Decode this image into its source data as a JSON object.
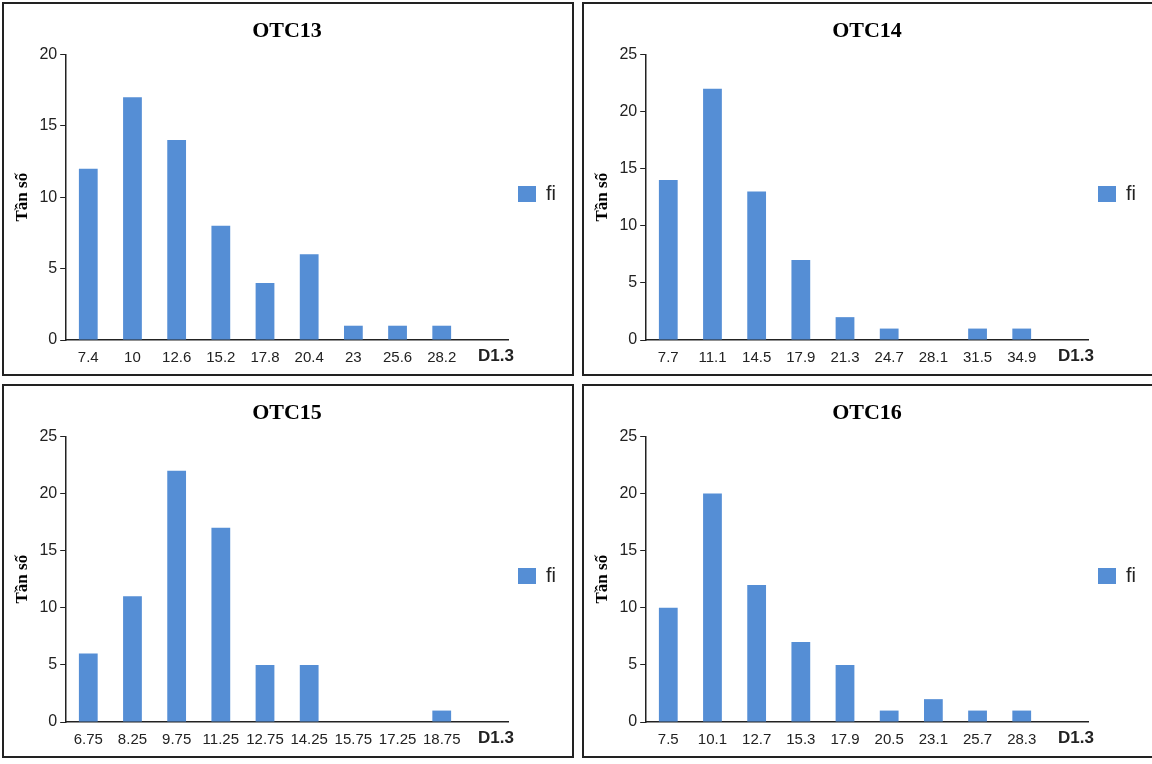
{
  "chart_data": [
    {
      "type": "bar",
      "title": "OTC13",
      "xlabel": "D1.3",
      "ylabel": "Tần số",
      "categories": [
        "7.4",
        "10",
        "12.6",
        "15.2",
        "17.8",
        "20.4",
        "23",
        "25.6",
        "28.2",
        null
      ],
      "series": [
        {
          "name": "fi",
          "color": "#558ed5",
          "values": [
            12,
            17,
            14,
            8,
            4,
            6,
            1,
            1,
            1,
            null
          ]
        }
      ],
      "ylim": [
        0,
        20
      ],
      "yticks": [
        0,
        5,
        10,
        15,
        20
      ],
      "grid": false,
      "legend": "right"
    },
    {
      "type": "bar",
      "title": "OTC14",
      "xlabel": "D1.3",
      "ylabel": "Tần số",
      "categories": [
        "7.7",
        "11.1",
        "14.5",
        "17.9",
        "21.3",
        "24.7",
        "28.1",
        "31.5",
        "34.9",
        null
      ],
      "series": [
        {
          "name": "fi",
          "color": "#558ed5",
          "values": [
            14,
            22,
            13,
            7,
            2,
            1,
            0,
            1,
            1,
            null
          ]
        }
      ],
      "ylim": [
        0,
        25
      ],
      "yticks": [
        0,
        5,
        10,
        15,
        20,
        25
      ],
      "grid": false,
      "legend": "right"
    },
    {
      "type": "bar",
      "title": "OTC15",
      "xlabel": "D1.3",
      "ylabel": "Tần số",
      "categories": [
        "6.75",
        "8.25",
        "9.75",
        "11.25",
        "12.75",
        "14.25",
        "15.75",
        "17.25",
        "18.75",
        null
      ],
      "series": [
        {
          "name": "fi",
          "color": "#558ed5",
          "values": [
            6,
            11,
            22,
            17,
            5,
            5,
            0,
            0,
            1,
            null
          ]
        }
      ],
      "ylim": [
        0,
        25
      ],
      "yticks": [
        0,
        5,
        10,
        15,
        20,
        25
      ],
      "grid": false,
      "legend": "right"
    },
    {
      "type": "bar",
      "title": "OTC16",
      "xlabel": "D1.3",
      "ylabel": "Tần số",
      "categories": [
        "7.5",
        "10.1",
        "12.7",
        "15.3",
        "17.9",
        "20.5",
        "23.1",
        "25.7",
        "28.3",
        null
      ],
      "series": [
        {
          "name": "fi",
          "color": "#558ed5",
          "values": [
            10,
            20,
            12,
            7,
            5,
            1,
            2,
            1,
            1,
            null
          ]
        }
      ],
      "ylim": [
        0,
        25
      ],
      "yticks": [
        0,
        5,
        10,
        15,
        20,
        25
      ],
      "grid": false,
      "legend": "right"
    }
  ]
}
